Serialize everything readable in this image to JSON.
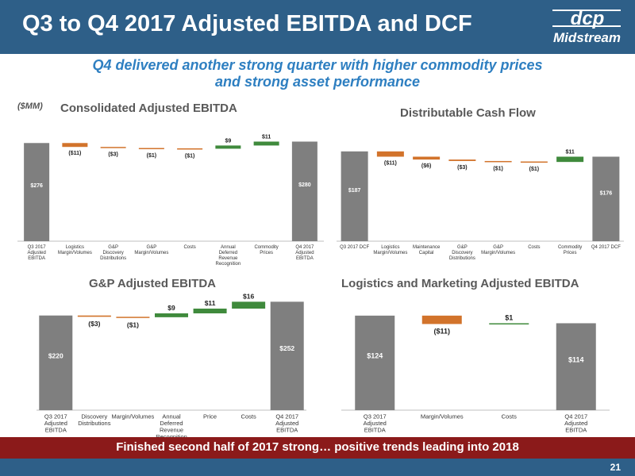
{
  "header": {
    "title": "Q3 to Q4 2017 Adjusted EBITDA and DCF",
    "logo_mark_text": "dcp",
    "logo_word": "Midstream"
  },
  "subtitle": {
    "line1": "Q4 delivered another strong quarter with higher commodity prices",
    "line2": "and strong asset performance"
  },
  "units_label": "($MM)",
  "footer": {
    "text": "Finished second half of 2017 strong… positive trends leading into 2018",
    "page_number": "21"
  },
  "colors": {
    "total": "#7f7f7f",
    "decrease": "#d2732b",
    "increase": "#3f8a3c",
    "title_bar": "#2e5f88",
    "footer_bar": "#8b1a1a",
    "subtitle": "#2e7fc1"
  },
  "chart_data": [
    {
      "id": "consolidated",
      "type": "waterfall",
      "title": "Consolidated Adjusted EBITDA",
      "categories": [
        "Q3 2017 Adjusted EBITDA",
        "Logistics Margin/Volumes",
        "G&P Discovery Distributions",
        "G&P Margin/Volumes",
        "Costs",
        "Annual Deferred Revenue Recognition",
        "Commodity Prices",
        "Q4 2017 Adjusted EBITDA"
      ],
      "values": [
        276,
        -11,
        -3,
        -1,
        -1,
        9,
        11,
        280
      ],
      "kinds": [
        "total",
        "delta",
        "delta",
        "delta",
        "delta",
        "delta",
        "delta",
        "total"
      ],
      "data_labels": [
        "$276",
        "($11)",
        "($3)",
        "($1)",
        "($1)",
        "$9",
        "$11",
        "$280"
      ],
      "ylim": [
        0,
        290
      ]
    },
    {
      "id": "dcf",
      "type": "waterfall",
      "title": "Distributable Cash Flow",
      "categories": [
        "Q3 2017 DCF",
        "Logistics Margin/Volumes",
        "Maintenance Capital",
        "G&P Discovery Distributions",
        "G&P Margin/Volumes",
        "Costs",
        "Commodity Prices",
        "Q4 2017 DCF"
      ],
      "values": [
        187,
        -11,
        -6,
        -3,
        -1,
        -1,
        11,
        176
      ],
      "kinds": [
        "total",
        "delta",
        "delta",
        "delta",
        "delta",
        "delta",
        "delta",
        "total"
      ],
      "data_labels": [
        "$187",
        "($11)",
        "($6)",
        "($3)",
        "($1)",
        "($1)",
        "$11",
        "$176"
      ],
      "ylim": [
        0,
        195
      ]
    },
    {
      "id": "gp",
      "type": "waterfall",
      "title": "G&P Adjusted EBITDA",
      "categories": [
        "Q3 2017 Adjusted EBITDA",
        "Discovery Distributions",
        "Margin/Volumes",
        "Annual Deferred Revenue Recognition",
        "Price",
        "Costs",
        "Q4 2017 Adjusted EBITDA"
      ],
      "values": [
        220,
        -3,
        -1,
        9,
        11,
        16,
        252
      ],
      "kinds": [
        "total",
        "delta",
        "delta",
        "delta",
        "delta",
        "delta",
        "total"
      ],
      "data_labels": [
        "$220",
        "($3)",
        "($1)",
        "$9",
        "$11",
        "$16",
        "$252"
      ],
      "ylim": [
        0,
        260
      ]
    },
    {
      "id": "logistics",
      "type": "waterfall",
      "title": "Logistics and Marketing Adjusted EBITDA",
      "categories": [
        "Q3 2017 Adjusted EBITDA",
        "Margin/Volumes",
        "Costs",
        "Q4 2017 Adjusted EBITDA"
      ],
      "values": [
        124,
        -11,
        1,
        114
      ],
      "kinds": [
        "total",
        "delta",
        "delta",
        "total"
      ],
      "data_labels": [
        "$124",
        "($11)",
        "$1",
        "$114"
      ],
      "ylim": [
        0,
        128
      ]
    }
  ]
}
